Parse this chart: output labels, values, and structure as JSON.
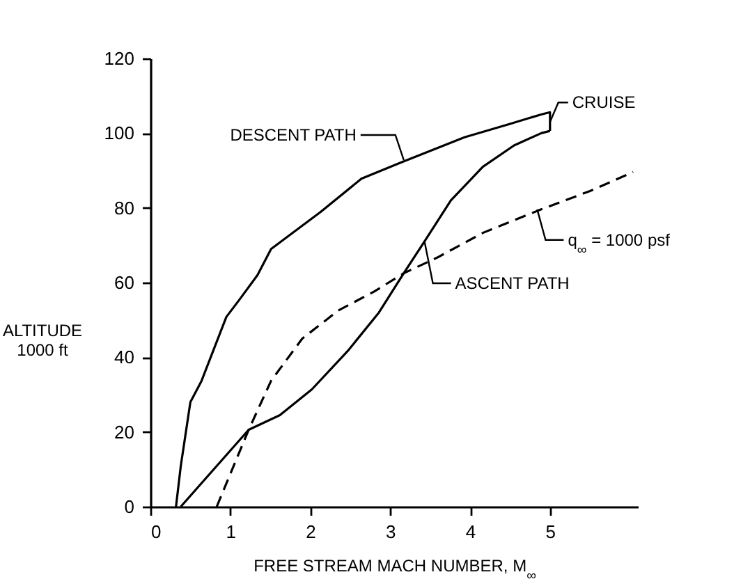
{
  "chart_data": {
    "type": "line",
    "xlabel": "FREE STREAM MACH NUMBER, M$_{∞}$",
    "ylabel": "ALTITUDE\n1000 ft",
    "xlim": [
      0,
      6.1
    ],
    "xticks": [
      0,
      1,
      2,
      3,
      4,
      5
    ],
    "ylim": [
      0,
      120
    ],
    "yticks": [
      0,
      20,
      40,
      60,
      80,
      100,
      120
    ],
    "marker": "none",
    "series": [
      {
        "color": "#000000",
        "line_style": "solid",
        "x": [
          0.32,
          0.38,
          0.5,
          0.64,
          0.95,
          1.12,
          1.34,
          1.51,
          2.13,
          2.64,
          3.14,
          3.93,
          4.5,
          4.89,
          5,
          5
        ],
        "values": [
          0,
          10.9,
          28,
          33.7,
          50.8,
          55.6,
          62,
          69,
          78.9,
          87.8,
          92.2,
          98.9,
          102.5,
          105,
          105.6,
          100.6
        ]
      },
      {
        "color": "#000000",
        "line_style": "solid",
        "x": [
          0.38,
          0.78,
          1.23,
          1.62,
          2.02,
          2.47,
          2.86,
          3.17,
          3.43,
          3.76,
          4.16,
          4.55,
          4.89,
          5
        ],
        "values": [
          0,
          9.7,
          20.6,
          24.5,
          31.4,
          41.7,
          52,
          62.5,
          71,
          82,
          91,
          96.7,
          100,
          100.6
        ]
      },
      {
        "color": "#000000",
        "line_style": "dashed",
        "x": [
          0.83,
          1.23,
          1.51,
          1.9,
          2.35,
          2.8,
          3.17,
          3.59,
          4.16,
          4.89,
          5.5,
          6.04
        ],
        "values": [
          0,
          20.6,
          33.7,
          45,
          52.5,
          57.6,
          62.5,
          66.7,
          73.3,
          79.6,
          84.5,
          89.6
        ]
      }
    ],
    "annotations": [
      {
        "text": "DESCENT PATH",
        "x": 3.17,
        "y": 92.8
      },
      {
        "text": "CRUISE",
        "x": 5,
        "y": 103
      },
      {
        "text": "ASCENT PATH",
        "x": 3.43,
        "y": 71
      },
      {
        "text": "q$_{∞}$ = 1000 psf",
        "x": 4.84,
        "y": 79.6
      }
    ]
  }
}
